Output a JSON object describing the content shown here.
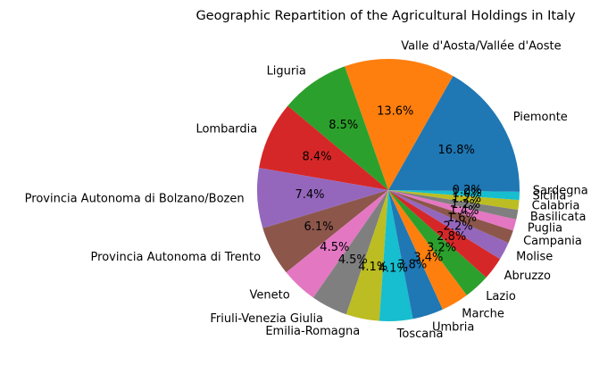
{
  "chart_data": {
    "type": "pie",
    "title": "Geographic Repartition of the Agricultural Holdings in Italy",
    "start_angle_deg": 0,
    "direction": "counterclockwise",
    "slices": [
      {
        "label": "Piemonte",
        "value": 16.8,
        "pct": "16.8%",
        "color": "#1f77b4"
      },
      {
        "label": "Valle d'Aosta/Vallée d'Aoste",
        "value": 13.6,
        "pct": "13.6%",
        "color": "#ff7f0e"
      },
      {
        "label": "Liguria",
        "value": 8.5,
        "pct": "8.5%",
        "color": "#2ca02c"
      },
      {
        "label": "Lombardia",
        "value": 8.4,
        "pct": "8.4%",
        "color": "#d62728"
      },
      {
        "label": "Provincia Autonoma di Bolzano/Bozen",
        "value": 7.4,
        "pct": "7.4%",
        "color": "#9467bd"
      },
      {
        "label": "Provincia Autonoma di Trento",
        "value": 6.1,
        "pct": "6.1%",
        "color": "#8c564b"
      },
      {
        "label": "Veneto",
        "value": 4.5,
        "pct": "4.5%",
        "color": "#e377c2"
      },
      {
        "label": "Friuli-Venezia Giulia",
        "value": 4.5,
        "pct": "4.5%",
        "color": "#7f7f7f"
      },
      {
        "label": "Emilia-Romagna",
        "value": 4.1,
        "pct": "4.1%",
        "color": "#bcbd22"
      },
      {
        "label": "Toscana",
        "value": 4.1,
        "pct": "4.1%",
        "color": "#17becf"
      },
      {
        "label": "Umbria",
        "value": 3.8,
        "pct": "3.8%",
        "color": "#1f77b4"
      },
      {
        "label": "Marche",
        "value": 3.4,
        "pct": "3.4%",
        "color": "#ff7f0e"
      },
      {
        "label": "Lazio",
        "value": 3.2,
        "pct": "3.2%",
        "color": "#2ca02c"
      },
      {
        "label": "Abruzzo",
        "value": 2.8,
        "pct": "2.8%",
        "color": "#d62728"
      },
      {
        "label": "Molise",
        "value": 2.2,
        "pct": "2.2%",
        "color": "#9467bd"
      },
      {
        "label": "Campania",
        "value": 1.6,
        "pct": "1.6%",
        "color": "#8c564b"
      },
      {
        "label": "Puglia",
        "value": 1.4,
        "pct": "1.4%",
        "color": "#e377c2"
      },
      {
        "label": "Basilicata",
        "value": 1.2,
        "pct": "1.2%",
        "color": "#7f7f7f"
      },
      {
        "label": "Calabria",
        "value": 1.2,
        "pct": "1.2%",
        "color": "#bcbd22"
      },
      {
        "label": "Sicilia",
        "value": 1.0,
        "pct": "1.0%",
        "color": "#17becf"
      },
      {
        "label": "Sardegna",
        "value": 0.2,
        "pct": "0.2%",
        "color": "#1f77b4"
      }
    ]
  }
}
